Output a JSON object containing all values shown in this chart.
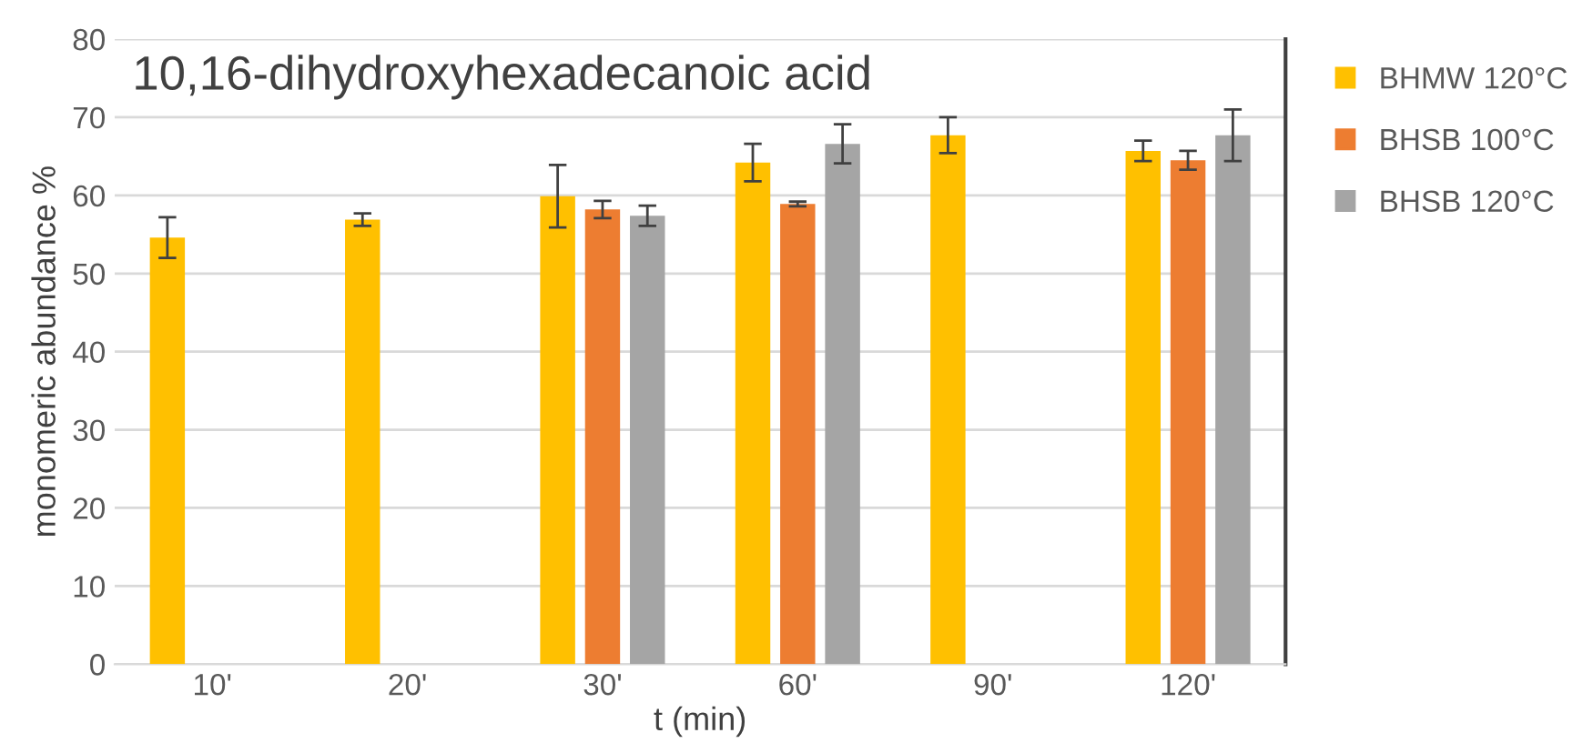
{
  "chart_data": {
    "type": "bar",
    "title": "10,16-dihydroxyhexadecanoic acid",
    "xlabel": "t (min)",
    "ylabel": "monomeric abundance %",
    "categories": [
      "10'",
      "20'",
      "30'",
      "60'",
      "90'",
      "120'"
    ],
    "series": [
      {
        "name": "BHMW 120°C",
        "color": "#ffc000",
        "values": [
          54.6,
          56.9,
          59.9,
          64.2,
          67.7,
          65.7
        ],
        "errors": [
          2.6,
          0.8,
          4.0,
          2.4,
          2.3,
          1.3
        ]
      },
      {
        "name": "BHSB 100°C",
        "color": "#ed7d31",
        "values": [
          null,
          null,
          58.2,
          58.9,
          null,
          64.5
        ],
        "errors": [
          null,
          null,
          1.1,
          0.3,
          null,
          1.2
        ]
      },
      {
        "name": "BHSB 120°C",
        "color": "#a5a5a5",
        "values": [
          null,
          null,
          57.4,
          66.6,
          null,
          67.7
        ],
        "errors": [
          null,
          null,
          1.3,
          2.5,
          null,
          3.3
        ]
      }
    ],
    "ylim": [
      0,
      80
    ],
    "yticks": [
      0,
      10,
      20,
      30,
      40,
      50,
      60,
      70,
      80
    ],
    "grid": "y",
    "legend": "right"
  }
}
